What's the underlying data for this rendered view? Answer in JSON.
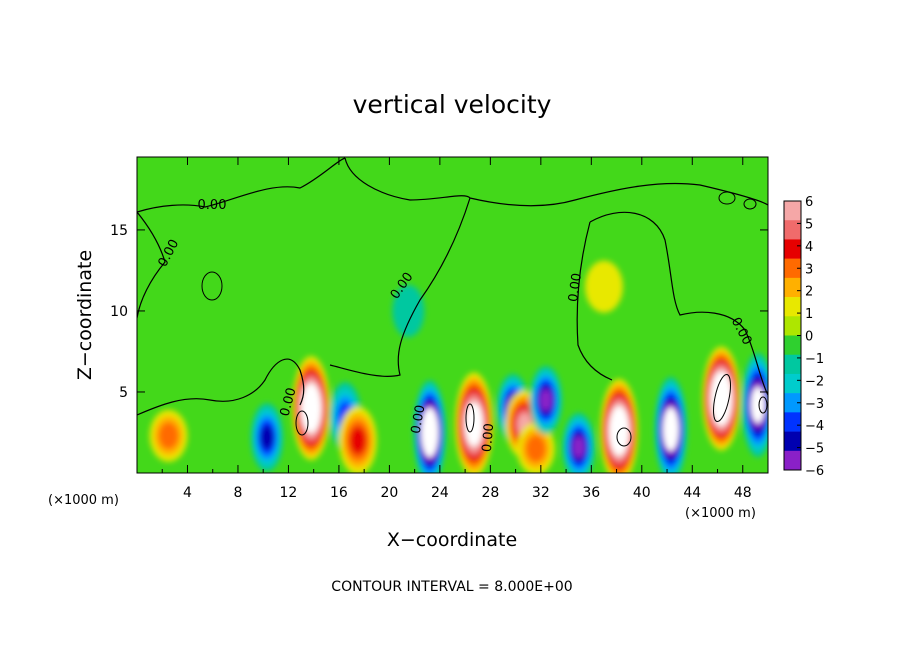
{
  "chart_data": {
    "type": "heatmap",
    "title": "vertical velocity",
    "xlabel": "X−coordinate",
    "ylabel": "Z−coordinate",
    "x_unit": "(×1000 m)",
    "x_unit_right": "(×1000 m)",
    "footer": "CONTOUR INTERVAL = 8.000E+00",
    "xlim": [
      0,
      50
    ],
    "ylim": [
      0,
      19.5
    ],
    "x_ticks": [
      4,
      8,
      12,
      16,
      20,
      24,
      28,
      32,
      36,
      40,
      44,
      48
    ],
    "y_ticks": [
      5,
      10,
      15
    ],
    "contour_level_label": "0.00",
    "colorbar": {
      "ticks": [
        6,
        5,
        4,
        3,
        2,
        1,
        0,
        -1,
        -2,
        -3,
        -4,
        -5,
        -6
      ],
      "tick_labels": [
        "6",
        "5",
        "4",
        "3",
        "2",
        "1",
        "0",
        "−1",
        "−2",
        "−3",
        "−4",
        "−5",
        "−6"
      ],
      "range": [
        -6,
        6
      ],
      "colors": [
        "#f5a7a7",
        "#f06b6b",
        "#e60000",
        "#ff6a00",
        "#ffb000",
        "#e8e800",
        "#aee600",
        "#2fd02f",
        "#00c8a0",
        "#00cccc",
        "#0099ff",
        "#0033ff",
        "#0000b0",
        "#8a20c8"
      ]
    },
    "features": [
      {
        "x": 2.5,
        "z": 2.3,
        "w": 3,
        "kind": "updraft"
      },
      {
        "x": 10.3,
        "z": 2.2,
        "w": -5,
        "kind": "downdraft"
      },
      {
        "x": 13.8,
        "z": 4.0,
        "w": 10,
        "kind": "updraft"
      },
      {
        "x": 16.5,
        "z": 3.5,
        "w": -4,
        "kind": "downdraft"
      },
      {
        "x": 17.5,
        "z": 2.0,
        "w": 4,
        "kind": "updraft"
      },
      {
        "x": 23.2,
        "z": 2.5,
        "w": -10,
        "kind": "downdraft"
      },
      {
        "x": 26.7,
        "z": 3.0,
        "w": 9,
        "kind": "updraft"
      },
      {
        "x": 29.8,
        "z": 4.0,
        "w": -6,
        "kind": "downdraft"
      },
      {
        "x": 30.7,
        "z": 3.0,
        "w": 6,
        "kind": "updraft"
      },
      {
        "x": 31.6,
        "z": 1.5,
        "w": 3,
        "kind": "updraft"
      },
      {
        "x": 32.4,
        "z": 4.5,
        "w": -6,
        "kind": "downdraft"
      },
      {
        "x": 35.0,
        "z": 1.6,
        "w": -6,
        "kind": "downdraft"
      },
      {
        "x": 38.2,
        "z": 2.6,
        "w": 10,
        "kind": "updraft"
      },
      {
        "x": 42.3,
        "z": 2.7,
        "w": -9,
        "kind": "downdraft"
      },
      {
        "x": 46.3,
        "z": 4.6,
        "w": 11,
        "kind": "updraft"
      },
      {
        "x": 49.2,
        "z": 4.2,
        "w": -8,
        "kind": "downdraft"
      },
      {
        "x": 37.0,
        "z": 11.5,
        "w": 1.5,
        "kind": "updraft"
      },
      {
        "x": 21.5,
        "z": 10.0,
        "w": -1,
        "kind": "downdraft"
      }
    ]
  }
}
